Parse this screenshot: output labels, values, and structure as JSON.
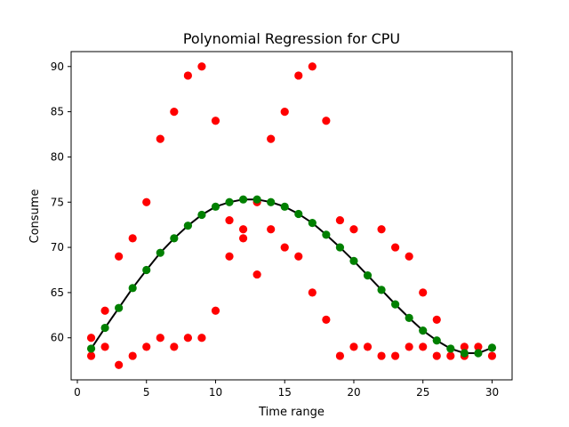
{
  "chart_data": {
    "type": "scatter",
    "title": "Polynomial Regression for CPU",
    "xlabel": "Time range",
    "ylabel": "Consume",
    "xlim": [
      -0.45,
      31.45
    ],
    "ylim": [
      55.35,
      91.65
    ],
    "xticks": [
      0,
      5,
      10,
      15,
      20,
      25,
      30
    ],
    "yticks": [
      60,
      65,
      70,
      75,
      80,
      85,
      90
    ],
    "grid": false,
    "colors": {
      "observed": "#ff0000",
      "fitted": "#008000",
      "line": "#000000"
    },
    "series": [
      {
        "kind": "observed",
        "points": [
          [
            1,
            58
          ],
          [
            1,
            60
          ],
          [
            2,
            59
          ],
          [
            2,
            63
          ],
          [
            3,
            57
          ],
          [
            3,
            69
          ],
          [
            4,
            58
          ],
          [
            4,
            71
          ],
          [
            5,
            59
          ],
          [
            5,
            75
          ],
          [
            6,
            60
          ],
          [
            6,
            82
          ],
          [
            7,
            59
          ],
          [
            7,
            85
          ],
          [
            8,
            60
          ],
          [
            8,
            89
          ],
          [
            9,
            60
          ],
          [
            9,
            90
          ],
          [
            10,
            63
          ],
          [
            10,
            84
          ],
          [
            11,
            69
          ],
          [
            11,
            73
          ],
          [
            12,
            71
          ],
          [
            12,
            72
          ],
          [
            13,
            67
          ],
          [
            13,
            75
          ],
          [
            14,
            72
          ],
          [
            14,
            82
          ],
          [
            15,
            70
          ],
          [
            15,
            85
          ],
          [
            16,
            69
          ],
          [
            16,
            89
          ],
          [
            17,
            65
          ],
          [
            17,
            90
          ],
          [
            18,
            62
          ],
          [
            18,
            84
          ],
          [
            19,
            58
          ],
          [
            19,
            73
          ],
          [
            20,
            59
          ],
          [
            20,
            72
          ],
          [
            21,
            59
          ],
          [
            22,
            58
          ],
          [
            22,
            72
          ],
          [
            23,
            58
          ],
          [
            23,
            70
          ],
          [
            24,
            59
          ],
          [
            24,
            69
          ],
          [
            25,
            59
          ],
          [
            25,
            65
          ],
          [
            26,
            58
          ],
          [
            26,
            62
          ],
          [
            27,
            58
          ],
          [
            28,
            58
          ],
          [
            28,
            59
          ],
          [
            29,
            59
          ],
          [
            30,
            58
          ]
        ]
      },
      {
        "kind": "fitted",
        "points": [
          [
            1,
            58.8
          ],
          [
            2,
            61.1
          ],
          [
            3,
            63.3
          ],
          [
            4,
            65.5
          ],
          [
            5,
            67.5
          ],
          [
            6,
            69.4
          ],
          [
            7,
            71.0
          ],
          [
            8,
            72.4
          ],
          [
            9,
            73.6
          ],
          [
            10,
            74.5
          ],
          [
            11,
            75.0
          ],
          [
            12,
            75.3
          ],
          [
            13,
            75.3
          ],
          [
            14,
            75.0
          ],
          [
            15,
            74.5
          ],
          [
            16,
            73.7
          ],
          [
            17,
            72.7
          ],
          [
            18,
            71.4
          ],
          [
            19,
            70.0
          ],
          [
            20,
            68.5
          ],
          [
            21,
            66.9
          ],
          [
            22,
            65.3
          ],
          [
            23,
            63.7
          ],
          [
            24,
            62.2
          ],
          [
            25,
            60.8
          ],
          [
            26,
            59.7
          ],
          [
            27,
            58.8
          ],
          [
            28,
            58.3
          ],
          [
            29,
            58.3
          ],
          [
            30,
            58.9
          ]
        ]
      }
    ]
  }
}
